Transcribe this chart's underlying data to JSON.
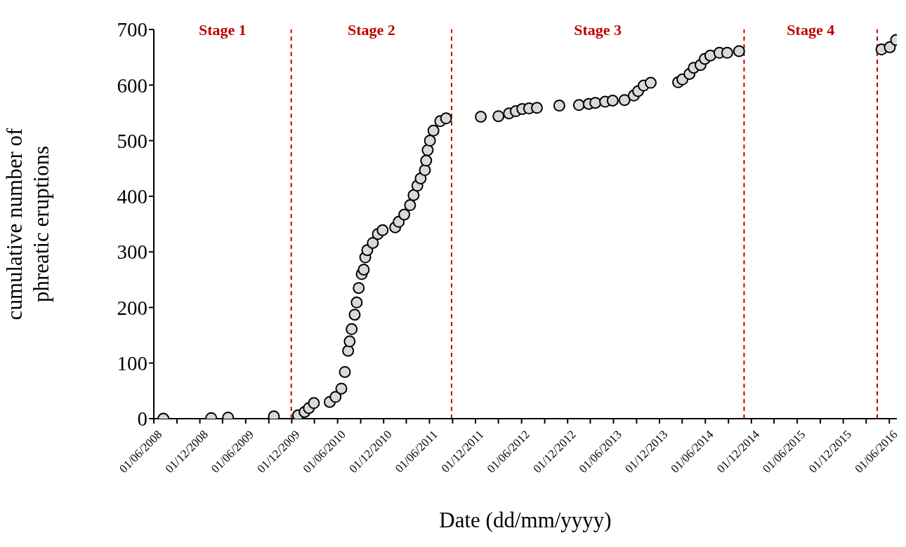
{
  "chart_data": {
    "type": "scatter",
    "xlabel": "Date (dd/mm/yyyy)",
    "ylabel": "cumulative number of phreatic eruptions",
    "x": [
      "2008-07-09",
      "2009-01-15",
      "2009-03-23",
      "2009-09-21",
      "2009-12-26",
      "2010-01-21",
      "2010-02-07",
      "2010-02-27",
      "2010-05-01",
      "2010-05-24",
      "2010-06-16",
      "2010-06-30",
      "2010-07-13",
      "2010-07-19",
      "2010-07-27",
      "2010-08-08",
      "2010-08-16",
      "2010-08-24",
      "2010-09-05",
      "2010-09-13",
      "2010-09-19",
      "2010-09-27",
      "2010-10-19",
      "2010-11-08",
      "2010-11-27",
      "2011-01-16",
      "2011-01-30",
      "2011-02-21",
      "2011-03-16",
      "2011-03-30",
      "2011-04-14",
      "2011-04-27",
      "2011-05-14",
      "2011-05-19",
      "2011-05-25",
      "2011-06-03",
      "2011-06-17",
      "2011-07-14",
      "2011-08-06",
      "2011-12-22",
      "2012-03-01",
      "2012-04-12",
      "2012-05-09",
      "2012-06-04",
      "2012-07-01",
      "2012-08-01",
      "2012-10-29",
      "2013-01-15",
      "2013-02-23",
      "2013-03-21",
      "2013-04-29",
      "2013-05-29",
      "2013-07-15",
      "2013-08-21",
      "2013-09-07",
      "2013-09-29",
      "2013-10-27",
      "2014-02-13",
      "2014-03-02",
      "2014-03-30",
      "2014-04-16",
      "2014-05-13",
      "2014-05-30",
      "2014-06-21",
      "2014-07-27",
      "2014-08-27",
      "2014-10-13",
      "2016-05-01",
      "2016-06-03",
      "2016-06-28"
    ],
    "series": [
      {
        "color": "#d9d9d9",
        "values": [
          0,
          1,
          2,
          4,
          6,
          12,
          19,
          28,
          30,
          39,
          54,
          84,
          122,
          139,
          161,
          187,
          209,
          235,
          260,
          268,
          290,
          303,
          316,
          332,
          339,
          344,
          354,
          367,
          384,
          402,
          419,
          432,
          447,
          464,
          483,
          500,
          518,
          535,
          540,
          543,
          544,
          549,
          553,
          557,
          558,
          559,
          563,
          564,
          566,
          568,
          570,
          572,
          573,
          581,
          589,
          599,
          604,
          605,
          610,
          620,
          631,
          636,
          647,
          653,
          658,
          658,
          661,
          664,
          668,
          681
        ]
      }
    ],
    "marker": "circle",
    "grid": false,
    "legend": false,
    "xlim": [
      "2008-06-01",
      "2016-07-01"
    ],
    "xticks": [
      {
        "value": "2008-06-01",
        "label": "01/06/2008"
      },
      {
        "value": "2008-09-01",
        "label": null
      },
      {
        "value": "2008-12-01",
        "label": "01/12/2008"
      },
      {
        "value": "2009-03-01",
        "label": null
      },
      {
        "value": "2009-06-01",
        "label": "01/06/2009"
      },
      {
        "value": "2009-09-01",
        "label": null
      },
      {
        "value": "2009-12-01",
        "label": "01/12/2009"
      },
      {
        "value": "2010-03-01",
        "label": null
      },
      {
        "value": "2010-06-01",
        "label": "01/06/2010"
      },
      {
        "value": "2010-09-01",
        "label": null
      },
      {
        "value": "2010-12-01",
        "label": "01/12/2010"
      },
      {
        "value": "2011-03-01",
        "label": null
      },
      {
        "value": "2011-06-01",
        "label": "01/06/2011"
      },
      {
        "value": "2011-09-01",
        "label": null
      },
      {
        "value": "2011-12-01",
        "label": "01/12/2011"
      },
      {
        "value": "2012-03-01",
        "label": null
      },
      {
        "value": "2012-06-01",
        "label": "01/06/2012"
      },
      {
        "value": "2012-09-01",
        "label": null
      },
      {
        "value": "2012-12-01",
        "label": "01/12/2012"
      },
      {
        "value": "2013-03-01",
        "label": null
      },
      {
        "value": "2013-06-01",
        "label": "01/06/2013"
      },
      {
        "value": "2013-09-01",
        "label": null
      },
      {
        "value": "2013-12-01",
        "label": "01/12/2013"
      },
      {
        "value": "2014-03-01",
        "label": null
      },
      {
        "value": "2014-06-01",
        "label": "01/06/2014"
      },
      {
        "value": "2014-09-01",
        "label": null
      },
      {
        "value": "2014-12-01",
        "label": "01/12/2014"
      },
      {
        "value": "2015-03-01",
        "label": null
      },
      {
        "value": "2015-06-01",
        "label": "01/06/2015"
      },
      {
        "value": "2015-09-01",
        "label": null
      },
      {
        "value": "2015-12-01",
        "label": "01/12/2015"
      },
      {
        "value": "2016-03-01",
        "label": null
      },
      {
        "value": "2016-06-01",
        "label": "01/06/2016"
      }
    ],
    "ylim": [
      0,
      700
    ],
    "yticks": [
      0,
      100,
      200,
      300,
      400,
      500,
      600,
      700
    ],
    "ref_lines": [
      {
        "axis": "x",
        "value": "2009-11-29",
        "color": "#c00000",
        "line_style": "dashed"
      },
      {
        "axis": "x",
        "value": "2011-08-28",
        "color": "#c00000",
        "line_style": "dashed"
      },
      {
        "axis": "x",
        "value": "2014-11-02",
        "color": "#c00000",
        "line_style": "dashed"
      },
      {
        "axis": "x",
        "value": "2016-04-14",
        "color": "#c00000",
        "line_style": "dashed"
      }
    ],
    "annotations": [
      "Stage 1",
      "Stage 2",
      "Stage 3",
      "Stage 4"
    ]
  }
}
